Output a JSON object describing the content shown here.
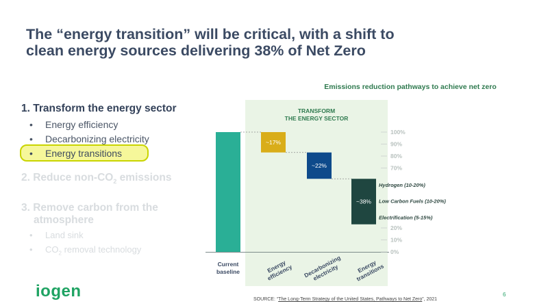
{
  "slide": {
    "title_line1": "The “energy transition” will be critical, with a shift to",
    "title_line2": "clean energy sources delivering 38% of Net Zero",
    "page_number": "6",
    "logo": "iogen",
    "source_prefix": "SOURCE: “",
    "source_link": "The Long-Term Strategy of the United States, Pathways to Net Zero",
    "source_suffix": "”, 2021"
  },
  "outline": {
    "section1": {
      "heading": "1. Transform the energy sector",
      "items": [
        "Energy efficiency",
        "Decarbonizing electricity",
        "Energy transitions"
      ]
    },
    "section2": {
      "heading_pre": "2. Reduce non-CO",
      "heading_sub": "2",
      "heading_post": " emissions"
    },
    "section3": {
      "heading_line1": "3. Remove carbon from the",
      "heading_line2": "atmosphere",
      "item1": "Land sink",
      "item2_pre": "CO",
      "item2_sub": "2",
      "item2_post": " removal technology"
    }
  },
  "colors": {
    "baseline": "#2aaf96",
    "energy_efficiency": "#d9ad19",
    "decarbonizing": "#0e4a8b",
    "transitions": "#1f4640",
    "panel": "#eaf4e6",
    "highlight": "#f6f79a"
  },
  "chart_data": {
    "type": "bar",
    "title": "Emissions reduction pathways to achieve net zero",
    "panel_label_line1": "TRANSFORM",
    "panel_label_line2": "THE ENERGY SECTOR",
    "categories": [
      {
        "key": "baseline",
        "line1": "Current",
        "line2": "baseline"
      },
      {
        "key": "energy_efficiency",
        "line1": "Energy",
        "line2": "efficiency"
      },
      {
        "key": "decarbonizing",
        "line1": "Decarbonizing",
        "line2": "electricity"
      },
      {
        "key": "transitions",
        "line1": "Energy",
        "line2": "transitions"
      }
    ],
    "bars": [
      {
        "key": "baseline",
        "bottom": 0,
        "top": 100,
        "label": ""
      },
      {
        "key": "energy_efficiency",
        "bottom": 83,
        "top": 100,
        "label": "~17%"
      },
      {
        "key": "decarbonizing",
        "bottom": 61,
        "top": 83,
        "label": "~22%"
      },
      {
        "key": "transitions",
        "bottom": 23,
        "top": 61,
        "label": "~38%"
      }
    ],
    "ylim": [
      0,
      100
    ],
    "ticks": [
      {
        "value": 100,
        "label": "100%"
      },
      {
        "value": 90,
        "label": "90%"
      },
      {
        "value": 80,
        "label": "80%"
      },
      {
        "value": 70,
        "label": "70%"
      },
      {
        "value": 20,
        "label": "20%"
      },
      {
        "value": 10,
        "label": "10%"
      },
      {
        "value": 0,
        "label": "0%"
      }
    ],
    "annotations": [
      {
        "text": "Hydrogen (10-20%)",
        "value": 56
      },
      {
        "text": "Low Carbon Fuels (10-20%)",
        "value": 42.5
      },
      {
        "text": "Electrification (5-15%)",
        "value": 29
      }
    ]
  }
}
